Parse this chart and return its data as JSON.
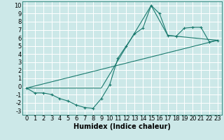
{
  "xlabel": "Humidex (Indice chaleur)",
  "xlim": [
    -0.5,
    23.5
  ],
  "ylim": [
    -3.5,
    10.5
  ],
  "xticks": [
    0,
    1,
    2,
    3,
    4,
    5,
    6,
    7,
    8,
    9,
    10,
    11,
    12,
    13,
    14,
    15,
    16,
    17,
    18,
    19,
    20,
    21,
    22,
    23
  ],
  "yticks": [
    -3,
    -2,
    -1,
    0,
    1,
    2,
    3,
    4,
    5,
    6,
    7,
    8,
    9,
    10
  ],
  "bg_color": "#cce8e8",
  "line_color": "#1a7a6e",
  "grid_color": "#ffffff",
  "curve1_x": [
    0,
    1,
    2,
    3,
    4,
    5,
    6,
    7,
    8,
    9,
    10,
    11,
    12,
    13,
    14,
    15,
    16,
    17,
    18,
    19,
    20,
    21,
    22,
    23
  ],
  "curve1_y": [
    -0.2,
    -0.8,
    -0.8,
    -1.0,
    -1.5,
    -1.8,
    -2.3,
    -2.6,
    -2.7,
    -1.5,
    0.2,
    3.5,
    5.0,
    6.5,
    7.2,
    10.0,
    9.0,
    6.3,
    6.2,
    7.2,
    7.3,
    7.3,
    5.5,
    5.7
  ],
  "curve2_x": [
    0,
    9,
    15,
    17,
    23
  ],
  "curve2_y": [
    -0.2,
    -0.2,
    10.0,
    6.3,
    5.7
  ],
  "curve3_x": [
    0,
    23
  ],
  "curve3_y": [
    -0.2,
    5.7
  ],
  "fontsize_xlabel": 7,
  "tick_fontsize": 6
}
